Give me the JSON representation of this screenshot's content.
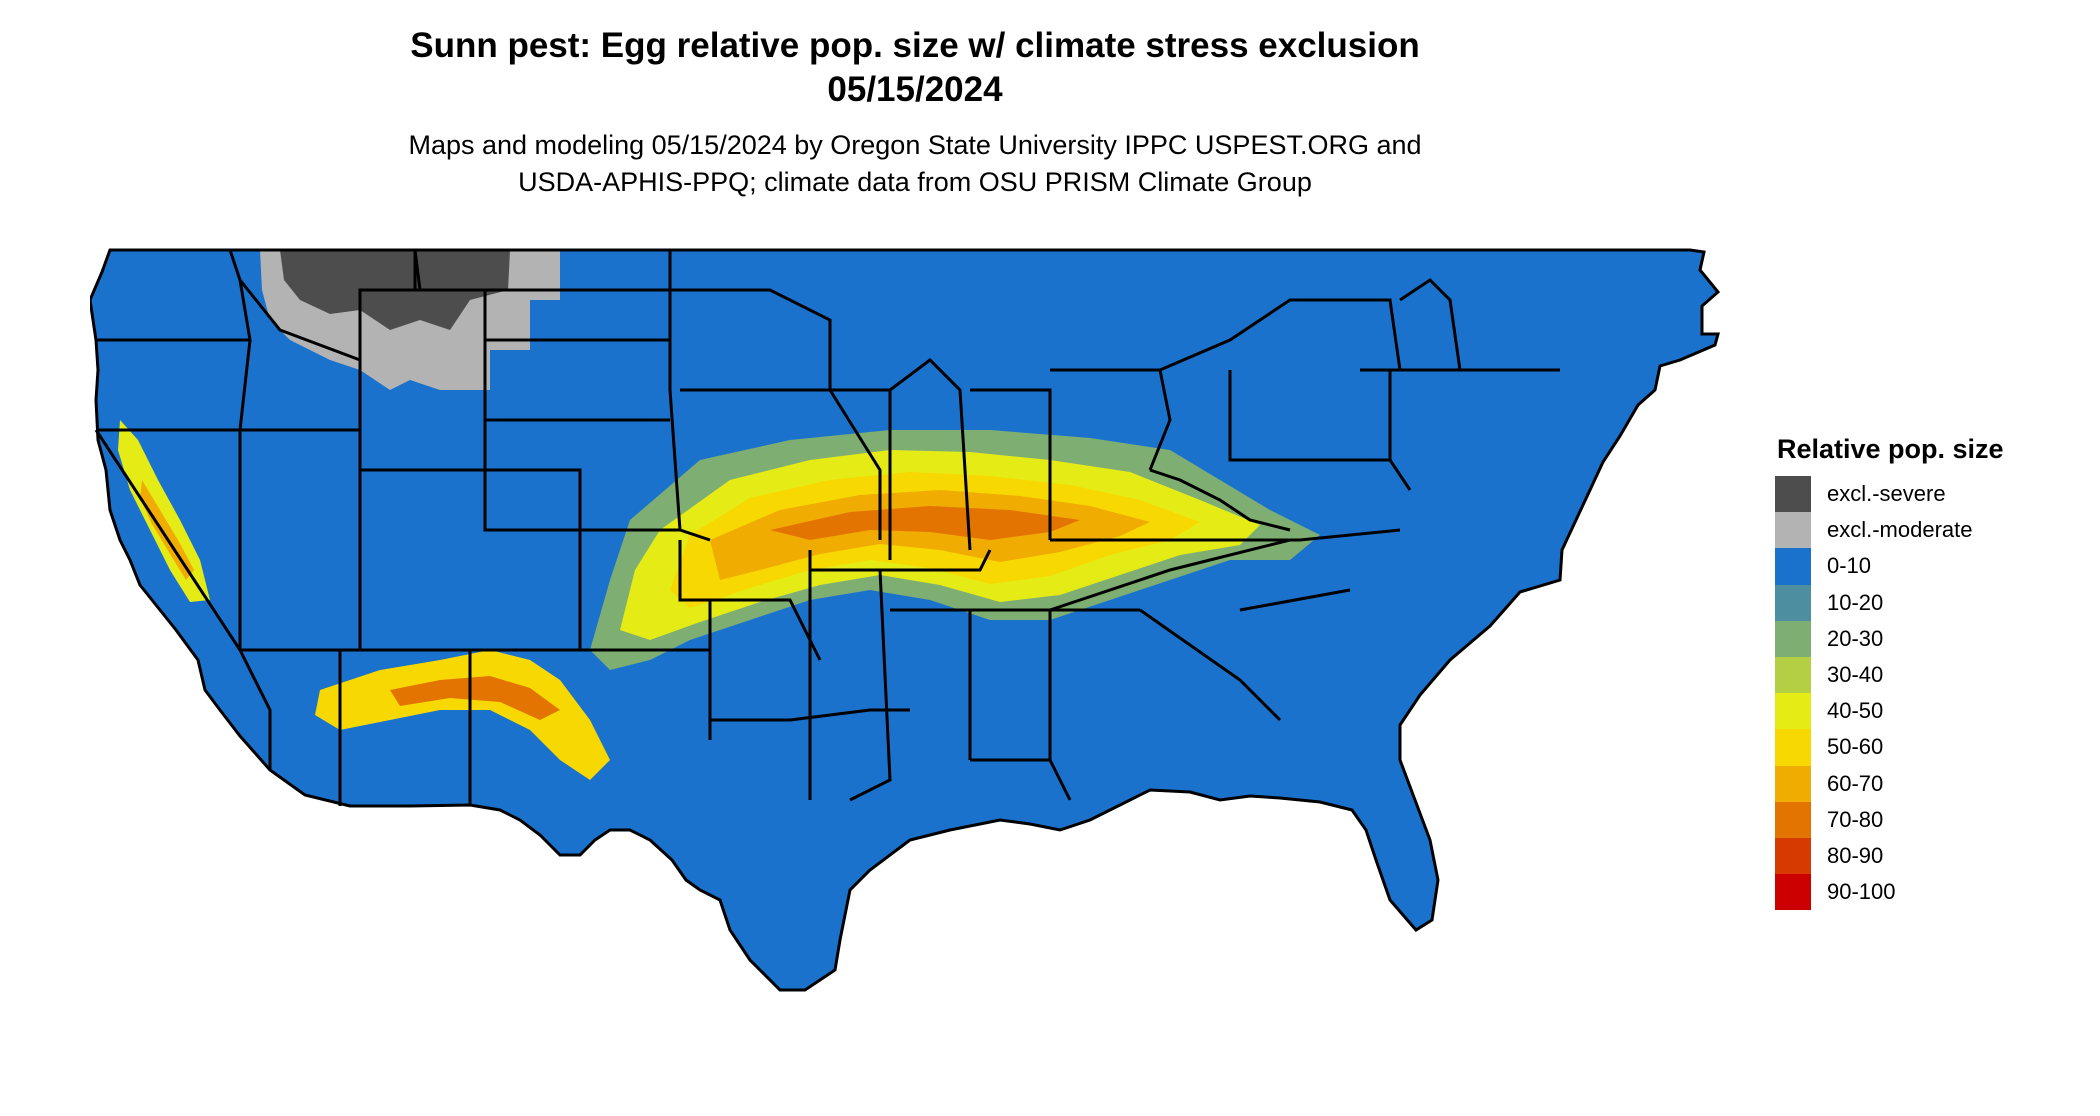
{
  "title": {
    "line1": "Sunn pest: Egg relative pop. size w/ climate stress exclusion",
    "line2": "05/15/2024"
  },
  "subtitle": {
    "line1": "Maps and modeling 05/15/2024 by Oregon State University IPPC USPEST.ORG and",
    "line2": "USDA-APHIS-PPQ; climate data from OSU PRISM Climate Group"
  },
  "colors": {
    "background_land": "#1b72cd",
    "borders": "#000000"
  },
  "legend": {
    "title": "Relative pop. size",
    "items": [
      {
        "label": "excl.-severe",
        "color": "#4d4d4d"
      },
      {
        "label": "excl.-moderate",
        "color": "#b3b3b3"
      },
      {
        "label": "0-10",
        "color": "#1b72cd"
      },
      {
        "label": "10-20",
        "color": "#4d8fa0"
      },
      {
        "label": "20-30",
        "color": "#7fae73"
      },
      {
        "label": "30-40",
        "color": "#b4cf44"
      },
      {
        "label": "40-50",
        "color": "#e5ec15"
      },
      {
        "label": "50-60",
        "color": "#f7d800"
      },
      {
        "label": "60-70",
        "color": "#f0ac00"
      },
      {
        "label": "70-80",
        "color": "#e37400"
      },
      {
        "label": "80-90",
        "color": "#d63a00"
      },
      {
        "label": "90-100",
        "color": "#cc0000"
      }
    ]
  }
}
